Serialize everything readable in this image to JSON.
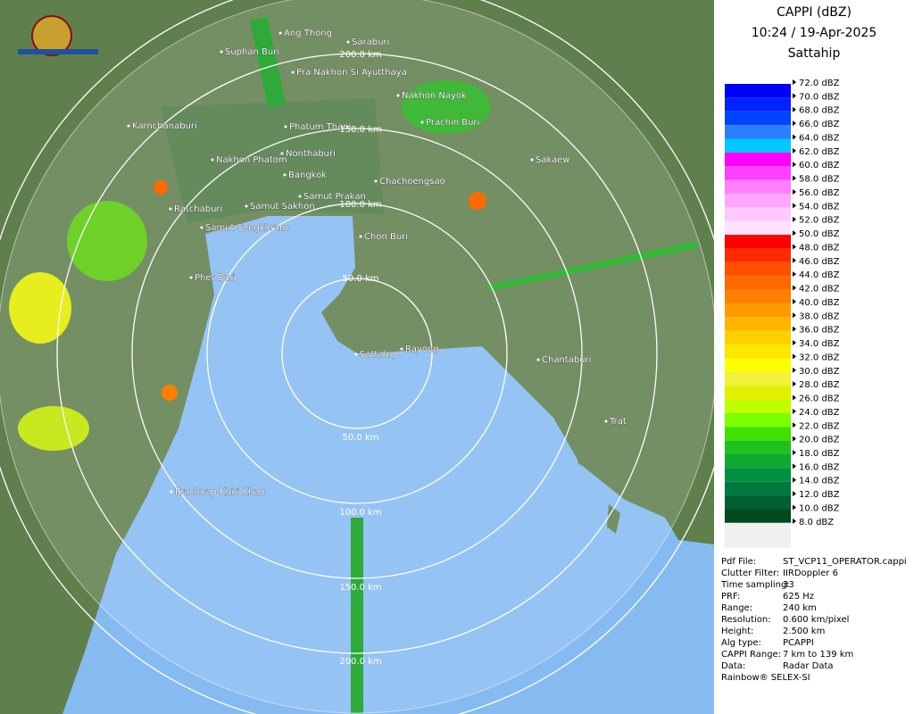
{
  "header": {
    "title": "CAPPI (dBZ)",
    "time": "10:24 / 19-Apr-2025",
    "station": "Sattahip"
  },
  "places": [
    "Ang Thong",
    "Suphan Buri",
    "Saraburi",
    "Pra Nakhon Si Ayutthaya",
    "Nakhon Nayok",
    "Karnchanaburi",
    "Phatum Thani",
    "Prachin Buri",
    "Nakhon Phatom",
    "Nonthaburi",
    "Sakaew",
    "Bangkok",
    "Chachoengsao",
    "Samut Prakan",
    "Ratchaburi",
    "Samut Sakhon",
    "Samut Songkhram",
    "Chon Buri",
    "Phet Buri",
    "Sattahip",
    "Rayong",
    "Chantaburi",
    "Trat",
    "Prachuap Khiri Khan"
  ],
  "rings": [
    "200.0 km",
    "150.0 km",
    "100.0 km",
    "50.0 km",
    "50.0 km",
    "100.0 km",
    "150.0 km",
    "200.0 km"
  ],
  "legend": [
    {
      "label": "72.0 dBZ",
      "color": "#ffffff"
    },
    {
      "label": "70.0 dBZ",
      "color": "#0000ff"
    },
    {
      "label": "68.0 dBZ",
      "color": "#0022ff"
    },
    {
      "label": "66.0 dBZ",
      "color": "#0044ff"
    },
    {
      "label": "64.0 dBZ",
      "color": "#2a7fff"
    },
    {
      "label": "62.0 dBZ",
      "color": "#00c8ff"
    },
    {
      "label": "60.0 dBZ",
      "color": "#ff00ff"
    },
    {
      "label": "58.0 dBZ",
      "color": "#ff40ff"
    },
    {
      "label": "56.0 dBZ",
      "color": "#ff80ff"
    },
    {
      "label": "54.0 dBZ",
      "color": "#ffa6ff"
    },
    {
      "label": "52.0 dBZ",
      "color": "#ffc8ff"
    },
    {
      "label": "50.0 dBZ",
      "color": "#ffe2ff"
    },
    {
      "label": "48.0 dBZ",
      "color": "#ff0000"
    },
    {
      "label": "46.0 dBZ",
      "color": "#ff2a00"
    },
    {
      "label": "44.0 dBZ",
      "color": "#ff5000"
    },
    {
      "label": "42.0 dBZ",
      "color": "#ff6a00"
    },
    {
      "label": "40.0 dBZ",
      "color": "#ff8000"
    },
    {
      "label": "38.0 dBZ",
      "color": "#ff9a00"
    },
    {
      "label": "36.0 dBZ",
      "color": "#ffb400"
    },
    {
      "label": "34.0 dBZ",
      "color": "#ffd000"
    },
    {
      "label": "32.0 dBZ",
      "color": "#ffe600"
    },
    {
      "label": "30.0 dBZ",
      "color": "#ffff00"
    },
    {
      "label": "28.0 dBZ",
      "color": "#f2f23a"
    },
    {
      "label": "26.0 dBZ",
      "color": "#e2f000"
    },
    {
      "label": "24.0 dBZ",
      "color": "#c0ff00"
    },
    {
      "label": "22.0 dBZ",
      "color": "#7cff00"
    },
    {
      "label": "20.0 dBZ",
      "color": "#40e000"
    },
    {
      "label": "18.0 dBZ",
      "color": "#20c020"
    },
    {
      "label": "16.0 dBZ",
      "color": "#10a830"
    },
    {
      "label": "14.0 dBZ",
      "color": "#009040"
    },
    {
      "label": "12.0 dBZ",
      "color": "#007840"
    },
    {
      "label": "10.0 dBZ",
      "color": "#006030"
    },
    {
      "label": "8.0 dBZ",
      "color": "#004a20"
    }
  ],
  "info": [
    [
      "Pdf File:",
      "ST_VCP11_OPERATOR.cappi"
    ],
    [
      "Clutter Filter:",
      "IIRDoppler 6"
    ],
    [
      "Time sampling:",
      "33"
    ],
    [
      "PRF:",
      "625 Hz"
    ],
    [
      "Range:",
      "240 km"
    ],
    [
      "Resolution:",
      "0.600 km/pixel"
    ],
    [
      "Height:",
      "2.500 km"
    ],
    [
      "Alg type:",
      "PCAPPI"
    ],
    [
      "CAPPI Range:",
      "7 km to 139 km"
    ],
    [
      "Data:",
      "Radar Data"
    ]
  ],
  "footer": "Rainbow® SELEX-SI"
}
